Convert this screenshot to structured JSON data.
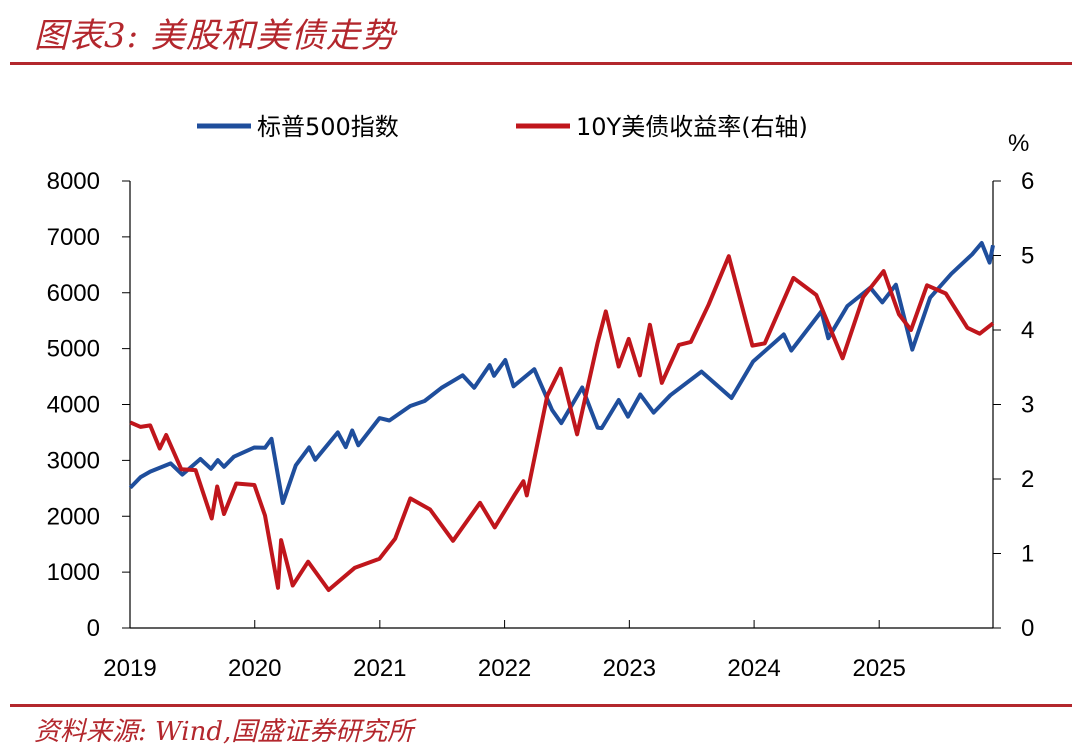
{
  "header": {
    "title": "图表3:  美股和美债走势"
  },
  "footer": {
    "source": "资料来源:  Wind,国盛证券研究所"
  },
  "chart_data": {
    "type": "line",
    "title": "图表3:  美股和美债走势",
    "x_ticks": [
      "2019",
      "2020",
      "2021",
      "2022",
      "2023",
      "2024",
      "2025"
    ],
    "xlim": [
      "2019-01-01",
      "2025-11-30"
    ],
    "y_left": {
      "ticks": [
        "0",
        "1000",
        "2000",
        "3000",
        "4000",
        "5000",
        "6000",
        "7000",
        "8000"
      ],
      "lim": [
        0,
        8000
      ]
    },
    "y_right": {
      "label": "%",
      "ticks": [
        "0",
        "1",
        "2",
        "3",
        "4",
        "5",
        "6"
      ],
      "lim": [
        0,
        6
      ]
    },
    "legend_position": "top",
    "grid": false,
    "series": [
      {
        "name": "标普500指数",
        "axis": "left",
        "color": "#1f4e9c",
        "points": [
          [
            "2019-01-02",
            2510
          ],
          [
            "2019-02-01",
            2700
          ],
          [
            "2019-03-01",
            2800
          ],
          [
            "2019-04-30",
            2945
          ],
          [
            "2019-06-03",
            2745
          ],
          [
            "2019-07-26",
            3025
          ],
          [
            "2019-08-26",
            2850
          ],
          [
            "2019-09-15",
            3005
          ],
          [
            "2019-10-03",
            2885
          ],
          [
            "2019-11-01",
            3065
          ],
          [
            "2019-12-31",
            3230
          ],
          [
            "2020-01-31",
            3225
          ],
          [
            "2020-02-19",
            3386
          ],
          [
            "2020-03-23",
            2237
          ],
          [
            "2020-04-30",
            2912
          ],
          [
            "2020-06-08",
            3232
          ],
          [
            "2020-06-26",
            3010
          ],
          [
            "2020-08-31",
            3500
          ],
          [
            "2020-09-23",
            3237
          ],
          [
            "2020-10-12",
            3534
          ],
          [
            "2020-10-30",
            3270
          ],
          [
            "2020-12-31",
            3756
          ],
          [
            "2021-01-29",
            3714
          ],
          [
            "2021-03-31",
            3973
          ],
          [
            "2021-05-12",
            4063
          ],
          [
            "2021-06-30",
            4297
          ],
          [
            "2021-08-31",
            4522
          ],
          [
            "2021-10-04",
            4300
          ],
          [
            "2021-11-18",
            4705
          ],
          [
            "2021-12-01",
            4513
          ],
          [
            "2022-01-03",
            4797
          ],
          [
            "2022-01-27",
            4326
          ],
          [
            "2022-03-29",
            4631
          ],
          [
            "2022-05-20",
            3901
          ],
          [
            "2022-06-16",
            3667
          ],
          [
            "2022-08-16",
            4305
          ],
          [
            "2022-09-30",
            3586
          ],
          [
            "2022-10-12",
            3577
          ],
          [
            "2022-12-01",
            4080
          ],
          [
            "2022-12-28",
            3783
          ],
          [
            "2023-02-02",
            4179
          ],
          [
            "2023-03-13",
            3855
          ],
          [
            "2023-05-01",
            4167
          ],
          [
            "2023-07-31",
            4589
          ],
          [
            "2023-10-27",
            4117
          ],
          [
            "2023-12-29",
            4770
          ],
          [
            "2024-03-28",
            5254
          ],
          [
            "2024-04-19",
            4967
          ],
          [
            "2024-07-16",
            5667
          ],
          [
            "2024-08-05",
            5186
          ],
          [
            "2024-09-30",
            5762
          ],
          [
            "2024-12-06",
            6090
          ],
          [
            "2025-01-10",
            5827
          ],
          [
            "2025-02-19",
            6144
          ],
          [
            "2025-04-08",
            4982
          ],
          [
            "2025-05-30",
            5912
          ],
          [
            "2025-07-31",
            6339
          ],
          [
            "2025-09-30",
            6688
          ],
          [
            "2025-10-28",
            6890
          ],
          [
            "2025-11-20",
            6540
          ],
          [
            "2025-11-30",
            6850
          ]
        ]
      },
      {
        "name": "10Y美债收益率(右轴)",
        "axis": "right",
        "color": "#c0161c",
        "points": [
          [
            "2019-01-02",
            2.76
          ],
          [
            "2019-02-01",
            2.7
          ],
          [
            "2019-03-01",
            2.72
          ],
          [
            "2019-03-29",
            2.41
          ],
          [
            "2019-04-17",
            2.59
          ],
          [
            "2019-05-31",
            2.13
          ],
          [
            "2019-07-12",
            2.12
          ],
          [
            "2019-08-28",
            1.47
          ],
          [
            "2019-09-13",
            1.9
          ],
          [
            "2019-10-03",
            1.53
          ],
          [
            "2019-11-08",
            1.94
          ],
          [
            "2019-12-31",
            1.92
          ],
          [
            "2020-01-31",
            1.51
          ],
          [
            "2020-03-09",
            0.54
          ],
          [
            "2020-03-18",
            1.18
          ],
          [
            "2020-04-21",
            0.57
          ],
          [
            "2020-06-05",
            0.89
          ],
          [
            "2020-08-04",
            0.51
          ],
          [
            "2020-10-20",
            0.81
          ],
          [
            "2020-12-31",
            0.93
          ],
          [
            "2021-02-15",
            1.2
          ],
          [
            "2021-03-31",
            1.74
          ],
          [
            "2021-05-28",
            1.59
          ],
          [
            "2021-08-03",
            1.17
          ],
          [
            "2021-10-21",
            1.68
          ],
          [
            "2021-12-03",
            1.35
          ],
          [
            "2022-01-31",
            1.79
          ],
          [
            "2022-02-25",
            1.97
          ],
          [
            "2022-03-07",
            1.78
          ],
          [
            "2022-05-06",
            3.12
          ],
          [
            "2022-06-14",
            3.48
          ],
          [
            "2022-08-01",
            2.6
          ],
          [
            "2022-09-30",
            3.83
          ],
          [
            "2022-10-24",
            4.25
          ],
          [
            "2022-12-01",
            3.51
          ],
          [
            "2022-12-30",
            3.88
          ],
          [
            "2023-02-01",
            3.39
          ],
          [
            "2023-03-02",
            4.07
          ],
          [
            "2023-04-06",
            3.29
          ],
          [
            "2023-05-26",
            3.8
          ],
          [
            "2023-06-30",
            3.84
          ],
          [
            "2023-08-21",
            4.34
          ],
          [
            "2023-10-19",
            4.99
          ],
          [
            "2023-12-27",
            3.79
          ],
          [
            "2024-02-01",
            3.82
          ],
          [
            "2024-04-25",
            4.7
          ],
          [
            "2024-07-01",
            4.47
          ],
          [
            "2024-09-16",
            3.62
          ],
          [
            "2024-11-15",
            4.44
          ],
          [
            "2025-01-14",
            4.79
          ],
          [
            "2025-02-28",
            4.21
          ],
          [
            "2025-04-04",
            4.0
          ],
          [
            "2025-05-21",
            4.6
          ],
          [
            "2025-07-15",
            4.49
          ],
          [
            "2025-09-16",
            4.03
          ],
          [
            "2025-10-22",
            3.95
          ],
          [
            "2025-11-30",
            4.09
          ]
        ]
      }
    ]
  }
}
